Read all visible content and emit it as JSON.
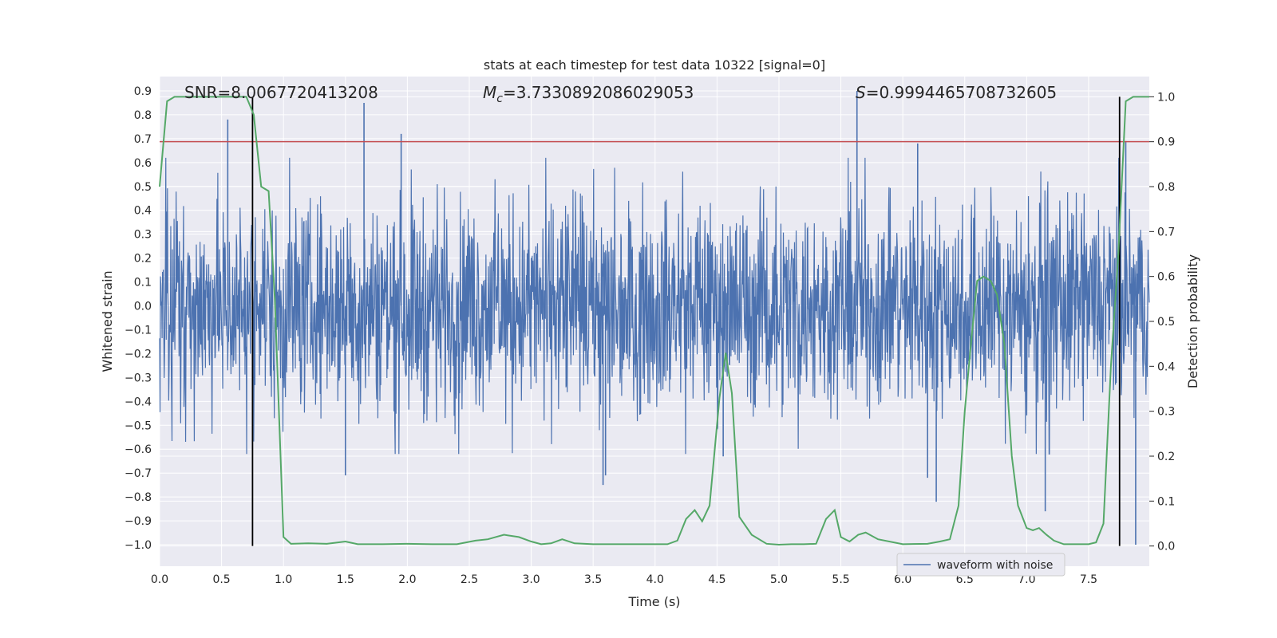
{
  "chart_data": {
    "type": "line",
    "title": "stats at each timestep for test data 10322 [signal=0]",
    "xlabel": "Time (s)",
    "ylabel": "Whitened strain",
    "ylabel_right": "Detection probability",
    "xlim": [
      0.0,
      7.99
    ],
    "ylim": [
      -1.09,
      0.96
    ],
    "ylim_right": [
      -0.045,
      1.045
    ],
    "x_ticks": [
      "0.0",
      "0.5",
      "1.0",
      "1.5",
      "2.0",
      "2.5",
      "3.0",
      "3.5",
      "4.0",
      "4.5",
      "5.0",
      "5.5",
      "6.0",
      "6.5",
      "7.0",
      "7.5"
    ],
    "y_ticks": [
      "0.9",
      "0.8",
      "0.7",
      "0.6",
      "0.5",
      "0.4",
      "0.3",
      "0.2",
      "0.1",
      "0.0",
      "-0.1",
      "-0.2",
      "-0.3",
      "-0.4",
      "-0.5",
      "-0.6",
      "-0.7",
      "-0.8",
      "-0.9",
      "-1.0"
    ],
    "y_ticks_right": [
      "1.0",
      "0.9",
      "0.8",
      "0.7",
      "0.6",
      "0.5",
      "0.4",
      "0.3",
      "0.2",
      "0.1",
      "0.0"
    ],
    "annotations": {
      "snr": "SNR=8.0067720413208",
      "mc_symbol": "M",
      "mc_sub": "c",
      "mc_value": "=3.7330892086029053",
      "s_symbol": "S",
      "s_value": "=0.9994465708732605"
    },
    "legend": {
      "label": "waveform with noise",
      "position": "lower-right"
    },
    "threshold_right_axis": 0.9,
    "vertical_markers_time": [
      0.75,
      7.75
    ],
    "waveform": {
      "name": "waveform with noise",
      "color": "#4c72b0",
      "spikes": [
        {
          "t": 0.55,
          "v": 0.78
        },
        {
          "t": 1.65,
          "v": 0.85
        },
        {
          "t": 5.63,
          "v": 0.9
        },
        {
          "t": 1.95,
          "v": 0.72
        },
        {
          "t": 6.12,
          "v": 0.68
        },
        {
          "t": 7.8,
          "v": 0.69
        },
        {
          "t": 7.88,
          "v": -1.0
        },
        {
          "t": 6.27,
          "v": -0.82
        },
        {
          "t": 3.6,
          "v": -0.71
        },
        {
          "t": 1.5,
          "v": -0.71
        },
        {
          "t": 7.15,
          "v": -0.86
        },
        {
          "t": 4.55,
          "v": -0.63
        },
        {
          "t": 3.58,
          "v": -0.75
        },
        {
          "t": 6.2,
          "v": -0.72
        }
      ]
    },
    "detection_probability": {
      "name": "detection probability",
      "color": "#55a868",
      "t": [
        0.0,
        0.06,
        0.12,
        0.2,
        0.3,
        0.4,
        0.5,
        0.6,
        0.7,
        0.76,
        0.82,
        0.88,
        0.93,
        1.0,
        1.06,
        1.2,
        1.35,
        1.5,
        1.6,
        1.8,
        2.0,
        2.2,
        2.4,
        2.55,
        2.65,
        2.78,
        2.9,
        3.0,
        3.08,
        3.16,
        3.25,
        3.35,
        3.5,
        3.7,
        3.9,
        4.1,
        4.18,
        4.25,
        4.32,
        4.38,
        4.44,
        4.52,
        4.57,
        4.62,
        4.68,
        4.78,
        4.9,
        5.0,
        5.1,
        5.2,
        5.3,
        5.38,
        5.45,
        5.5,
        5.57,
        5.64,
        5.7,
        5.8,
        6.0,
        6.2,
        6.3,
        6.38,
        6.45,
        6.5,
        6.55,
        6.6,
        6.65,
        6.71,
        6.76,
        6.82,
        6.88,
        6.93,
        7.0,
        7.05,
        7.1,
        7.16,
        7.22,
        7.3,
        7.4,
        7.5,
        7.56,
        7.62,
        7.68,
        7.74,
        7.8,
        7.86,
        7.94,
        7.99
      ],
      "p": [
        0.8,
        0.99,
        1.0,
        1.0,
        1.0,
        1.0,
        1.0,
        1.0,
        1.0,
        0.96,
        0.8,
        0.79,
        0.55,
        0.02,
        0.005,
        0.006,
        0.005,
        0.01,
        0.004,
        0.004,
        0.005,
        0.004,
        0.004,
        0.012,
        0.015,
        0.025,
        0.02,
        0.01,
        0.004,
        0.006,
        0.015,
        0.006,
        0.004,
        0.004,
        0.004,
        0.004,
        0.012,
        0.06,
        0.08,
        0.055,
        0.09,
        0.33,
        0.43,
        0.34,
        0.065,
        0.025,
        0.005,
        0.003,
        0.004,
        0.004,
        0.005,
        0.06,
        0.08,
        0.02,
        0.01,
        0.025,
        0.03,
        0.015,
        0.004,
        0.005,
        0.01,
        0.015,
        0.09,
        0.3,
        0.45,
        0.59,
        0.6,
        0.59,
        0.56,
        0.45,
        0.2,
        0.09,
        0.04,
        0.035,
        0.04,
        0.025,
        0.012,
        0.004,
        0.004,
        0.004,
        0.008,
        0.05,
        0.4,
        0.65,
        0.99,
        1.0,
        1.0,
        1.0
      ]
    }
  }
}
